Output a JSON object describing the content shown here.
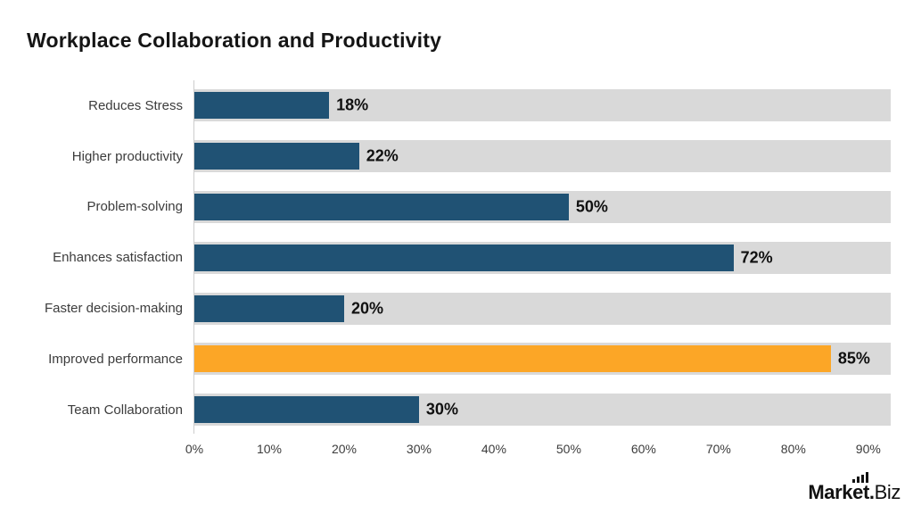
{
  "page": {
    "background": "#ffffff"
  },
  "chart_data": {
    "type": "bar",
    "orientation": "horizontal",
    "title": "Workplace Collaboration and Productivity",
    "categories": [
      "Reduces Stress",
      "Higher productivity",
      "Problem-solving",
      "Enhances satisfaction",
      "Faster decision-making",
      "Improved performance",
      "Team Collaboration"
    ],
    "values": [
      18,
      22,
      50,
      72,
      20,
      85,
      30
    ],
    "value_labels": [
      "18%",
      "22%",
      "50%",
      "72%",
      "20%",
      "85%",
      "30%"
    ],
    "highlight_index": 5,
    "x_ticks": [
      "0%",
      "10%",
      "20%",
      "30%",
      "40%",
      "50%",
      "60%",
      "70%",
      "80%",
      "90%"
    ],
    "x_tick_values": [
      0,
      10,
      20,
      30,
      40,
      50,
      60,
      70,
      80,
      90
    ],
    "xlim": [
      0,
      93
    ],
    "axis_max": 93,
    "grid": "off",
    "legend": "none",
    "track_full_width": true,
    "colors": {
      "background": "#ffffff",
      "bar": "#205274",
      "highlight": "#fca626",
      "track": "#d9d9d9",
      "axis_line": "#cdcdcd",
      "title": "#151515",
      "label": "#3c3c3c",
      "value": "#101010",
      "tick": "#3c3c3c"
    }
  },
  "branding": {
    "mark": "Mark",
    "et": "et",
    "dot": ".",
    "biz": "Biz",
    "icon": "bar-chart-icon"
  }
}
